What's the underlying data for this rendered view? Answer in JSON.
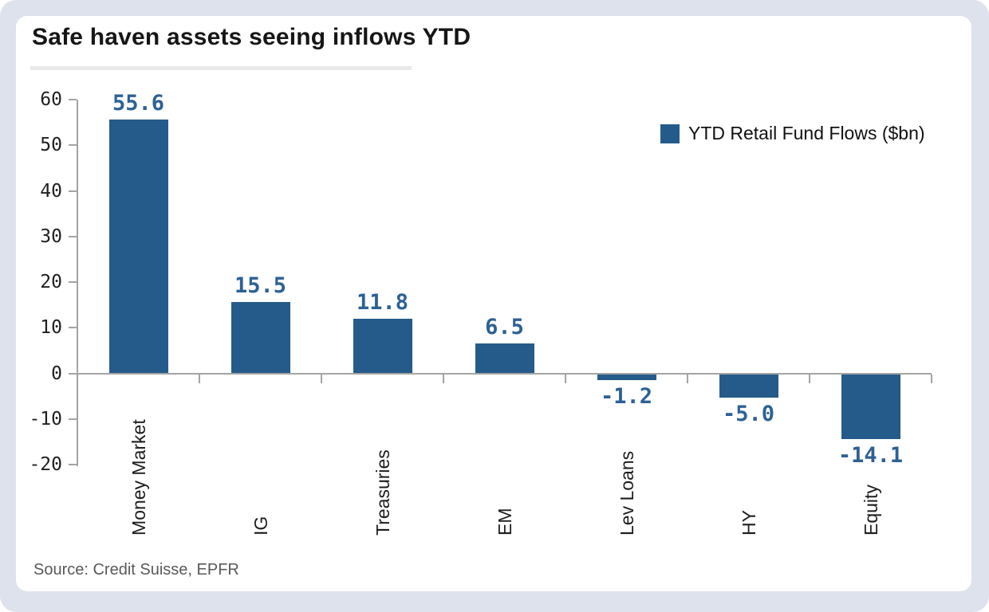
{
  "page": {
    "title": "Safe haven assets seeing inflows YTD",
    "source": "Source: Credit Suisse, EPFR"
  },
  "colors": {
    "page_background": "#dee2ec",
    "card_background": "#ffffff",
    "bar": "#255b8a",
    "value_label": "#2d6194",
    "axis": "#a4a4a4",
    "title_text": "#161616",
    "source_text": "#595959"
  },
  "chart_data": {
    "type": "bar",
    "title": "Safe haven assets seeing inflows YTD",
    "categories": [
      "Money Market",
      "IG",
      "Treasuries",
      "EM",
      "Lev Loans",
      "HY",
      "Equity"
    ],
    "values": [
      55.6,
      15.5,
      11.8,
      6.5,
      -1.2,
      -5.0,
      -14.1
    ],
    "value_labels": [
      "55.6",
      "15.5",
      "11.8",
      "6.5",
      "-1.2",
      "-5.0",
      "-14.1"
    ],
    "series_name": "YTD Retail Fund Flows ($bn)",
    "legend": [
      {
        "label": "YTD Retail Fund Flows ($bn)",
        "color": "#255b8a"
      }
    ],
    "legend_position": "upper right",
    "xlabel": "",
    "ylabel": "",
    "ylim": [
      -20,
      60
    ],
    "yticks": [
      60,
      50,
      40,
      30,
      20,
      10,
      0,
      -10,
      -20
    ],
    "grid": false,
    "bar_color": "#255b8a",
    "source": "Source: Credit Suisse, EPFR"
  }
}
